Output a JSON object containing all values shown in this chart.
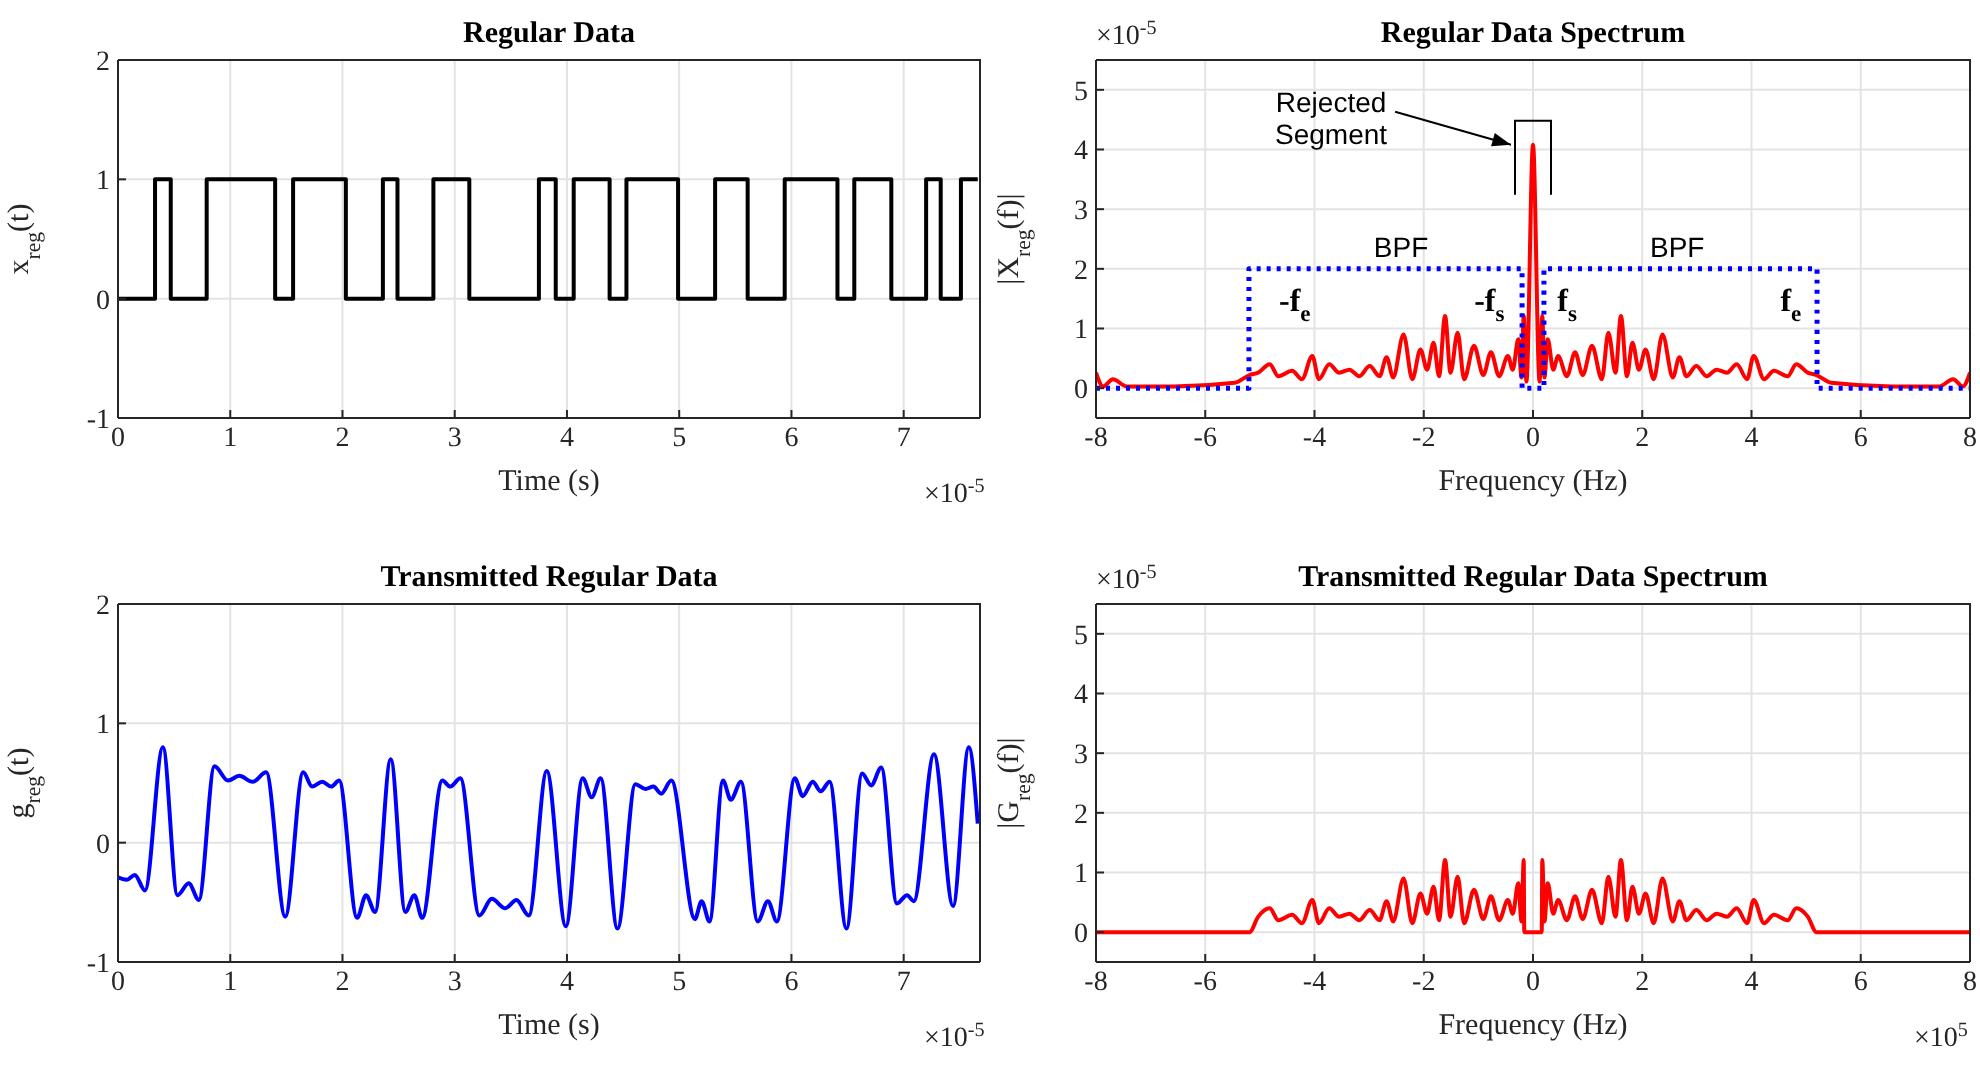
{
  "chart_data": [
    {
      "type": "step",
      "title": "Regular Data",
      "xlabel": "Time (s)",
      "ylabel": "x$_{reg}$(t)",
      "xlim": [
        0,
        7.68
      ],
      "xticks": [
        0,
        1,
        2,
        3,
        4,
        5,
        6,
        7
      ],
      "ylim": [
        -1,
        2
      ],
      "yticks": [
        -1,
        0,
        1,
        2
      ],
      "grid": true,
      "legend": false,
      "annotations": [
        "×10$^{-5}$"
      ],
      "series": [
        {
          "color": "#000000",
          "x": [
            0,
            0.33,
            0.47,
            0.79,
            1.4,
            1.56,
            2.03,
            2.36,
            2.49,
            2.81,
            3.13,
            3.75,
            3.9,
            4.06,
            4.38,
            4.53,
            4.99,
            5.32,
            5.61,
            5.94,
            6.41,
            6.56,
            6.89,
            7.2,
            7.33,
            7.51,
            7.66
          ],
          "values": [
            0,
            1,
            0,
            1,
            0,
            1,
            0,
            1,
            0,
            1,
            0,
            1,
            0,
            1,
            0,
            1,
            0,
            1,
            0,
            1,
            0,
            1,
            0,
            1,
            0,
            1,
            1
          ]
        }
      ]
    },
    {
      "type": "line",
      "title": "Regular Data Spectrum",
      "xlabel": "Frequency (Hz)",
      "ylabel": "|X$_{reg}$(f)|",
      "xlim": [
        -8,
        8
      ],
      "xticks": [
        -8,
        -6,
        -4,
        -2,
        0,
        2,
        4,
        6,
        8
      ],
      "ylim": [
        -0.5,
        5.5
      ],
      "yticks": [
        0,
        1,
        2,
        3,
        4,
        5
      ],
      "grid": true,
      "legend": false,
      "annotations": [
        "×10$^{-5}$",
        "Rejected Segment",
        "BPF",
        "BPF",
        "-f$_{e}$",
        "-f$_{s}$",
        "f$_{s}$",
        "f$_{e}$"
      ],
      "series": [
        {
          "color": "#ff0000",
          "x": [
            -8,
            -7.87,
            -7.69,
            -7.44,
            -6.58,
            -5.46,
            -5.19,
            -5.03,
            -4.82,
            -4.66,
            -4.41,
            -4.23,
            -4.04,
            -3.92,
            -3.73,
            -3.55,
            -3.36,
            -3.18,
            -2.99,
            -2.81,
            -2.68,
            -2.56,
            -2.37,
            -2.21,
            -2.06,
            -1.94,
            -1.82,
            -1.72,
            -1.61,
            -1.51,
            -1.38,
            -1.26,
            -1.08,
            -0.91,
            -0.77,
            -0.62,
            -0.46,
            -0.37,
            -0.27,
            -0.21,
            -0.17,
            -0.12,
            0,
            0.12,
            0.17,
            0.21,
            0.27,
            0.37,
            0.46,
            0.62,
            0.77,
            0.91,
            1.08,
            1.26,
            1.38,
            1.51,
            1.61,
            1.72,
            1.82,
            1.94,
            2.06,
            2.21,
            2.37,
            2.56,
            2.68,
            2.81,
            2.99,
            3.18,
            3.36,
            3.55,
            3.73,
            3.92,
            4.04,
            4.23,
            4.41,
            4.66,
            4.82,
            5.03,
            5.19,
            5.46,
            6.58,
            7.44,
            7.69,
            7.87,
            8
          ],
          "values": [
            0.26,
            0.03,
            0.15,
            0.03,
            0.03,
            0.09,
            0.22,
            0.26,
            0.4,
            0.2,
            0.29,
            0.15,
            0.54,
            0.15,
            0.4,
            0.26,
            0.31,
            0.2,
            0.37,
            0.2,
            0.52,
            0.18,
            0.9,
            0.15,
            0.65,
            0.31,
            0.76,
            0.2,
            1.21,
            0.26,
            0.93,
            0.15,
            0.71,
            0.22,
            0.6,
            0.2,
            0.54,
            0.31,
            0.82,
            0.18,
            1.21,
            0.11,
            4.08,
            0.11,
            1.21,
            0.18,
            0.82,
            0.31,
            0.54,
            0.2,
            0.6,
            0.22,
            0.71,
            0.15,
            0.93,
            0.26,
            1.21,
            0.2,
            0.76,
            0.31,
            0.65,
            0.15,
            0.9,
            0.18,
            0.52,
            0.2,
            0.37,
            0.2,
            0.31,
            0.26,
            0.4,
            0.15,
            0.54,
            0.15,
            0.29,
            0.2,
            0.4,
            0.26,
            0.22,
            0.09,
            0.03,
            0.03,
            0.15,
            0.03,
            0.26
          ]
        },
        {
          "color": "#0000ff",
          "line_style": "dotted",
          "x": [
            -8,
            -5.2,
            -5.2,
            -0.2,
            -0.2,
            0.2,
            0.2,
            5.2,
            5.2,
            8
          ],
          "values": [
            0,
            0,
            2,
            2,
            0,
            0,
            2,
            2,
            0,
            0
          ]
        }
      ]
    },
    {
      "type": "line",
      "title": "Transmitted Regular Data",
      "xlabel": "Time (s)",
      "ylabel": "g$_{reg}$(t)",
      "xlim": [
        0,
        7.68
      ],
      "xticks": [
        0,
        1,
        2,
        3,
        4,
        5,
        6,
        7
      ],
      "ylim": [
        -1,
        2
      ],
      "yticks": [
        -1,
        0,
        1,
        2
      ],
      "grid": true,
      "legend": false,
      "annotations": [
        "×10$^{-5}$"
      ],
      "series": [
        {
          "color": "#0000ff",
          "x": [
            0,
            0.08,
            0.15,
            0.24,
            0.4,
            0.53,
            0.63,
            0.72,
            0.86,
            0.98,
            1.08,
            1.2,
            1.32,
            1.49,
            1.65,
            1.73,
            1.82,
            1.9,
            1.97,
            2.13,
            2.21,
            2.29,
            2.43,
            2.56,
            2.64,
            2.71,
            2.89,
            2.96,
            3.05,
            3.22,
            3.33,
            3.45,
            3.55,
            3.66,
            3.82,
            3.99,
            4.14,
            4.22,
            4.3,
            4.45,
            4.61,
            4.7,
            4.77,
            4.84,
            4.93,
            5.14,
            5.2,
            5.27,
            5.39,
            5.46,
            5.55,
            5.7,
            5.79,
            5.87,
            6.03,
            6.1,
            6.19,
            6.26,
            6.34,
            6.49,
            6.63,
            6.71,
            6.8,
            6.94,
            7.03,
            7.09,
            7.27,
            7.44,
            7.58,
            7.66
          ],
          "values": [
            -0.29,
            -0.31,
            -0.27,
            -0.4,
            0.8,
            -0.44,
            -0.34,
            -0.48,
            0.64,
            0.52,
            0.56,
            0.51,
            0.59,
            -0.62,
            0.59,
            0.47,
            0.51,
            0.47,
            0.52,
            -0.63,
            -0.44,
            -0.58,
            0.7,
            -0.58,
            -0.44,
            -0.63,
            0.52,
            0.47,
            0.54,
            -0.61,
            -0.47,
            -0.55,
            -0.48,
            -0.61,
            0.6,
            -0.7,
            0.54,
            0.38,
            0.54,
            -0.72,
            0.49,
            0.45,
            0.47,
            0.41,
            0.52,
            -0.64,
            -0.49,
            -0.66,
            0.52,
            0.36,
            0.51,
            -0.66,
            -0.49,
            -0.66,
            0.54,
            0.39,
            0.51,
            0.43,
            0.51,
            -0.72,
            0.58,
            0.48,
            0.63,
            -0.51,
            -0.44,
            -0.49,
            0.74,
            -0.53,
            0.8,
            0.16
          ]
        }
      ]
    },
    {
      "type": "line",
      "title": "Transmitted Regular Data Spectrum",
      "xlabel": "Frequency (Hz)",
      "ylabel": "|G$_{reg}$(f)|",
      "xlim": [
        -8,
        8
      ],
      "xticks": [
        -8,
        -6,
        -4,
        -2,
        0,
        2,
        4,
        6,
        8
      ],
      "ylim": [
        -0.5,
        5.5
      ],
      "yticks": [
        0,
        1,
        2,
        3,
        4,
        5
      ],
      "grid": true,
      "legend": false,
      "annotations": [
        "×10$^{-5}$",
        "×10$^{5}$"
      ],
      "series": [
        {
          "color": "#ff0000",
          "x": [
            -8,
            -5.19,
            -5.03,
            -4.82,
            -4.66,
            -4.41,
            -4.23,
            -4.04,
            -3.92,
            -3.73,
            -3.55,
            -3.36,
            -3.18,
            -2.99,
            -2.81,
            -2.68,
            -2.56,
            -2.37,
            -2.21,
            -2.06,
            -1.94,
            -1.82,
            -1.72,
            -1.61,
            -1.51,
            -1.38,
            -1.26,
            -1.08,
            -0.91,
            -0.77,
            -0.62,
            -0.46,
            -0.37,
            -0.27,
            -0.21,
            -0.17,
            -0.16,
            0.16,
            0.17,
            0.21,
            0.27,
            0.37,
            0.46,
            0.62,
            0.77,
            0.91,
            1.08,
            1.26,
            1.38,
            1.51,
            1.61,
            1.72,
            1.82,
            1.94,
            2.06,
            2.21,
            2.37,
            2.56,
            2.68,
            2.81,
            2.99,
            3.18,
            3.36,
            3.55,
            3.73,
            3.92,
            4.04,
            4.23,
            4.41,
            4.66,
            4.82,
            5.03,
            5.19,
            8
          ],
          "values": [
            0,
            0,
            0.26,
            0.4,
            0.2,
            0.29,
            0.15,
            0.54,
            0.15,
            0.4,
            0.26,
            0.31,
            0.2,
            0.37,
            0.2,
            0.52,
            0.18,
            0.9,
            0.15,
            0.65,
            0.31,
            0.76,
            0.2,
            1.21,
            0.26,
            0.93,
            0.15,
            0.71,
            0.22,
            0.6,
            0.2,
            0.54,
            0.31,
            0.82,
            0.18,
            1.21,
            0,
            0,
            1.21,
            0.18,
            0.82,
            0.31,
            0.54,
            0.2,
            0.6,
            0.22,
            0.71,
            0.15,
            0.93,
            0.26,
            1.21,
            0.2,
            0.76,
            0.31,
            0.65,
            0.15,
            0.9,
            0.18,
            0.52,
            0.2,
            0.37,
            0.2,
            0.31,
            0.26,
            0.4,
            0.15,
            0.54,
            0.15,
            0.29,
            0.2,
            0.4,
            0.26,
            0,
            0
          ]
        }
      ]
    }
  ]
}
